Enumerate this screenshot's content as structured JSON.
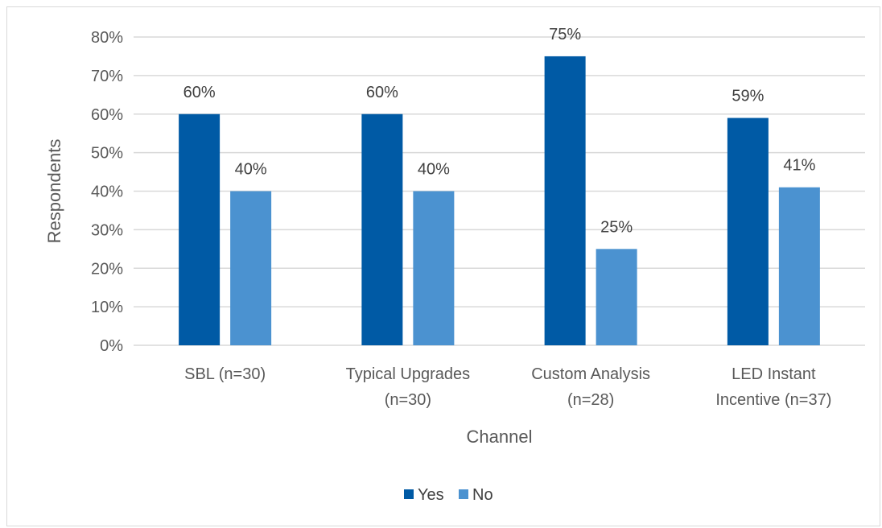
{
  "chart_data": {
    "type": "bar",
    "categories": [
      [
        "SBL (n=30)"
      ],
      [
        "Typical Upgrades",
        "(n=30)"
      ],
      [
        "Custom Analysis",
        "(n=28)"
      ],
      [
        "LED Instant",
        "Incentive (n=37)"
      ]
    ],
    "series": [
      {
        "name": "Yes",
        "color": "#005aa5",
        "values": [
          60,
          60,
          75,
          59
        ]
      },
      {
        "name": "No",
        "color": "#4b92d0",
        "values": [
          40,
          40,
          25,
          41
        ]
      }
    ],
    "value_format": "{v}%",
    "ylim": [
      0,
      80
    ],
    "yticks": [
      0,
      10,
      20,
      30,
      40,
      50,
      60,
      70,
      80
    ],
    "ytick_labels": [
      "0%",
      "10%",
      "20%",
      "30%",
      "40%",
      "50%",
      "60%",
      "70%",
      "80%"
    ],
    "xlabel": "Channel",
    "ylabel": "Respondents",
    "grid": true,
    "legend_position": "bottom"
  }
}
